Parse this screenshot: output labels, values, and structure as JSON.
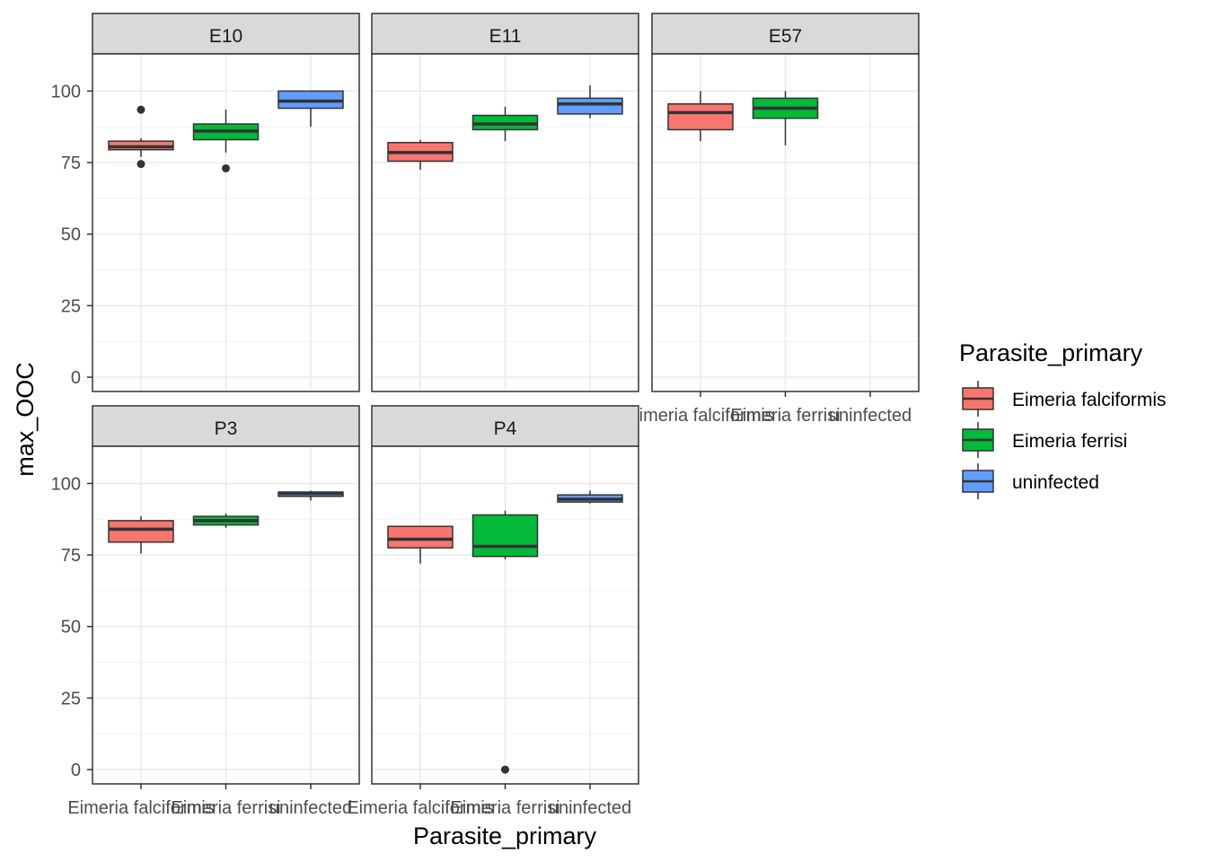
{
  "chart_data": {
    "type": "boxplot",
    "facet_variable": "Eimeria strain",
    "xlabel": "Parasite_primary",
    "ylabel": "max_OOC",
    "ylim": [
      -5,
      113
    ],
    "yticks": [
      0,
      25,
      50,
      75,
      100
    ],
    "categories": [
      "Eimeria falciformis",
      "Eimeria ferrisi",
      "uninfected"
    ],
    "legend": {
      "title": "Parasite_primary",
      "position": "right",
      "entries": [
        {
          "label": "Eimeria falciformis",
          "color": "#F8766D"
        },
        {
          "label": "Eimeria ferrisi",
          "color": "#00BA38"
        },
        {
          "label": "uninfected",
          "color": "#619CFF"
        }
      ]
    },
    "colors": {
      "Eimeria falciformis": "#F8766D",
      "Eimeria ferrisi": "#00BA38",
      "uninfected": "#619CFF"
    },
    "facets": [
      {
        "label": "E10",
        "boxes": [
          {
            "category": "Eimeria falciformis",
            "lower_whisker": 77,
            "q1": 79.5,
            "median": 80.5,
            "q3": 82.5,
            "upper_whisker": 83.5,
            "outliers": [
              93.5,
              74.5
            ]
          },
          {
            "category": "Eimeria ferrisi",
            "lower_whisker": 78.5,
            "q1": 83,
            "median": 86,
            "q3": 88.5,
            "upper_whisker": 93.5,
            "outliers": [
              73
            ]
          },
          {
            "category": "uninfected",
            "lower_whisker": 87.5,
            "q1": 94,
            "median": 96.5,
            "q3": 100,
            "upper_whisker": 100,
            "outliers": []
          }
        ]
      },
      {
        "label": "E11",
        "boxes": [
          {
            "category": "Eimeria falciformis",
            "lower_whisker": 72.5,
            "q1": 75.5,
            "median": 78.5,
            "q3": 82,
            "upper_whisker": 83,
            "outliers": []
          },
          {
            "category": "Eimeria ferrisi",
            "lower_whisker": 82.5,
            "q1": 86.5,
            "median": 88.5,
            "q3": 91.5,
            "upper_whisker": 94.5,
            "outliers": []
          },
          {
            "category": "uninfected",
            "lower_whisker": 90.5,
            "q1": 92,
            "median": 95.5,
            "q3": 97.5,
            "upper_whisker": 102,
            "outliers": []
          }
        ]
      },
      {
        "label": "E57",
        "boxes": [
          {
            "category": "Eimeria falciformis",
            "lower_whisker": 82.5,
            "q1": 86.5,
            "median": 92.5,
            "q3": 95.5,
            "upper_whisker": 100,
            "outliers": []
          },
          {
            "category": "Eimeria ferrisi",
            "lower_whisker": 81,
            "q1": 90.5,
            "median": 94,
            "q3": 97.5,
            "upper_whisker": 100,
            "outliers": []
          }
        ]
      },
      {
        "label": "P3",
        "boxes": [
          {
            "category": "Eimeria falciformis",
            "lower_whisker": 75.5,
            "q1": 79.5,
            "median": 84,
            "q3": 87,
            "upper_whisker": 88.5,
            "outliers": []
          },
          {
            "category": "Eimeria ferrisi",
            "lower_whisker": 84.5,
            "q1": 85.5,
            "median": 87,
            "q3": 88.5,
            "upper_whisker": 89.5,
            "outliers": []
          },
          {
            "category": "uninfected",
            "lower_whisker": 94,
            "q1": 95.5,
            "median": 96.5,
            "q3": 97,
            "upper_whisker": 97.5,
            "outliers": []
          }
        ]
      },
      {
        "label": "P4",
        "boxes": [
          {
            "category": "Eimeria falciformis",
            "lower_whisker": 72,
            "q1": 77.5,
            "median": 80.5,
            "q3": 85,
            "upper_whisker": 85,
            "outliers": []
          },
          {
            "category": "Eimeria ferrisi",
            "lower_whisker": 73.5,
            "q1": 74.5,
            "median": 78,
            "q3": 89,
            "upper_whisker": 90.5,
            "outliers": [
              0
            ]
          },
          {
            "category": "uninfected",
            "lower_whisker": 93,
            "q1": 93.5,
            "median": 94.5,
            "q3": 96,
            "upper_whisker": 97.5,
            "outliers": []
          }
        ]
      }
    ]
  }
}
